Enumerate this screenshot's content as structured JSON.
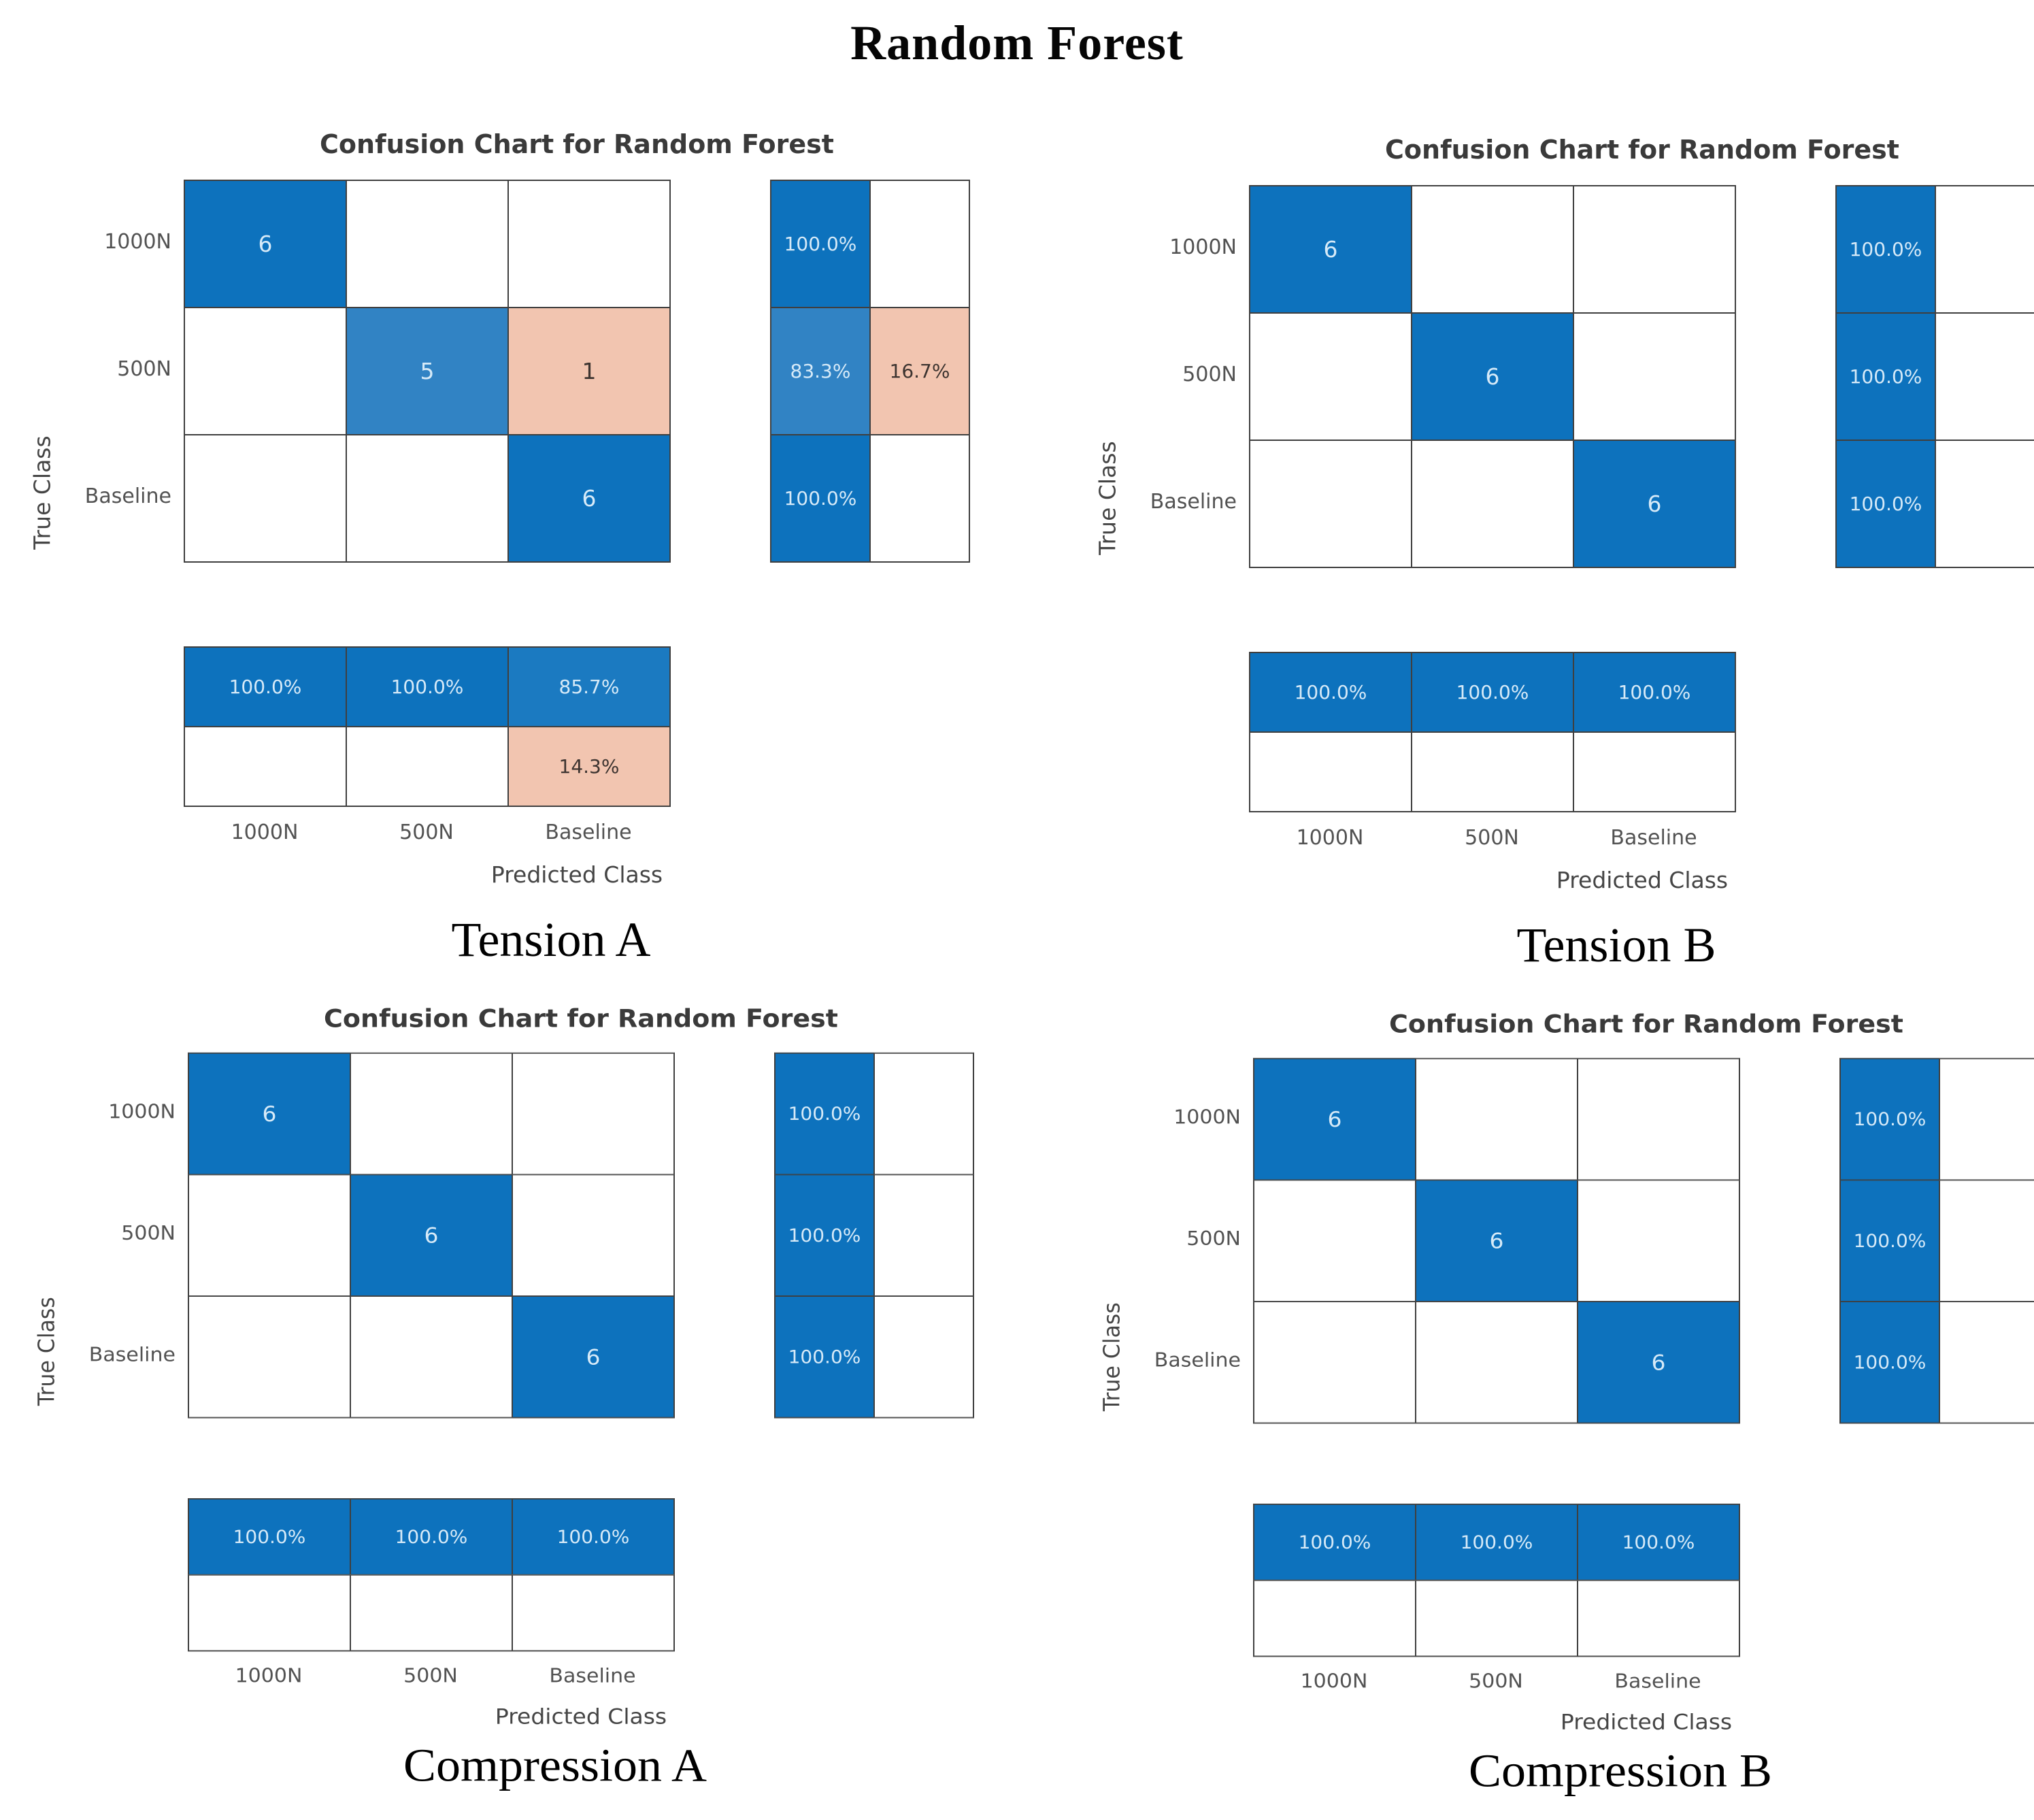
{
  "page_title": "Random Forest",
  "colors": {
    "blue": "#0d72bd",
    "blue_light": "#3183c4",
    "blue_mid": "#1b7ac1",
    "salmon": "#f2c5b0",
    "text_on_blue": "#d6eaf8",
    "text_on_salmon": "#3d3430",
    "grid_border": "#3f3f3f"
  },
  "chart_data": [
    {
      "type": "heatmap",
      "title": "Confusion Chart for Random Forest",
      "caption": "Tension A",
      "xlabel": "Predicted Class",
      "ylabel": "True Class",
      "classes": [
        "1000N",
        "500N",
        "Baseline"
      ],
      "counts": [
        [
          6,
          0,
          0
        ],
        [
          0,
          5,
          1
        ],
        [
          0,
          0,
          6
        ]
      ],
      "row_normalized_pct": [
        [
          100.0,
          null
        ],
        [
          83.3,
          16.7
        ],
        [
          100.0,
          null
        ]
      ],
      "col_normalized_pct": [
        [
          100.0,
          100.0,
          85.7
        ],
        [
          null,
          null,
          14.3
        ]
      ],
      "cells": {
        "matrix": [
          [
            "6",
            "",
            ""
          ],
          [
            "",
            "5",
            "1"
          ],
          [
            "",
            "",
            "6"
          ]
        ],
        "matrix_colors": [
          [
            "blue",
            "",
            ""
          ],
          [
            "",
            "blue_light",
            "salmon"
          ],
          [
            "",
            "",
            "blue"
          ]
        ],
        "row_summary": [
          [
            "100.0%",
            ""
          ],
          [
            "83.3%",
            "16.7%"
          ],
          [
            "100.0%",
            ""
          ]
        ],
        "row_summary_colors": [
          [
            "blue",
            ""
          ],
          [
            "blue_light",
            "salmon"
          ],
          [
            "blue",
            ""
          ]
        ],
        "col_summary": [
          [
            "100.0%",
            "100.0%",
            "85.7%"
          ],
          [
            "",
            "",
            "14.3%"
          ]
        ],
        "col_summary_colors": [
          [
            "blue",
            "blue",
            "blue_mid"
          ],
          [
            "",
            "",
            "salmon"
          ]
        ]
      }
    },
    {
      "type": "heatmap",
      "title": "Confusion Chart for Random Forest",
      "caption": "Tension B",
      "xlabel": "Predicted Class",
      "ylabel": "True Class",
      "classes": [
        "1000N",
        "500N",
        "Baseline"
      ],
      "counts": [
        [
          6,
          0,
          0
        ],
        [
          0,
          6,
          0
        ],
        [
          0,
          0,
          6
        ]
      ],
      "row_normalized_pct": [
        [
          100.0,
          null
        ],
        [
          100.0,
          null
        ],
        [
          100.0,
          null
        ]
      ],
      "col_normalized_pct": [
        [
          100.0,
          100.0,
          100.0
        ],
        [
          null,
          null,
          null
        ]
      ],
      "cells": {
        "matrix": [
          [
            "6",
            "",
            ""
          ],
          [
            "",
            "6",
            ""
          ],
          [
            "",
            "",
            "6"
          ]
        ],
        "matrix_colors": [
          [
            "blue",
            "",
            ""
          ],
          [
            "",
            "blue",
            ""
          ],
          [
            "",
            "",
            "blue"
          ]
        ],
        "row_summary": [
          [
            "100.0%",
            ""
          ],
          [
            "100.0%",
            ""
          ],
          [
            "100.0%",
            ""
          ]
        ],
        "row_summary_colors": [
          [
            "blue",
            ""
          ],
          [
            "blue",
            ""
          ],
          [
            "blue",
            ""
          ]
        ],
        "col_summary": [
          [
            "100.0%",
            "100.0%",
            "100.0%"
          ],
          [
            "",
            "",
            ""
          ]
        ],
        "col_summary_colors": [
          [
            "blue",
            "blue",
            "blue"
          ],
          [
            "",
            "",
            ""
          ]
        ]
      }
    },
    {
      "type": "heatmap",
      "title": "Confusion Chart for Random Forest",
      "caption": "Compression A",
      "xlabel": "Predicted Class",
      "ylabel": "True Class",
      "classes": [
        "1000N",
        "500N",
        "Baseline"
      ],
      "counts": [
        [
          6,
          0,
          0
        ],
        [
          0,
          6,
          0
        ],
        [
          0,
          0,
          6
        ]
      ],
      "row_normalized_pct": [
        [
          100.0,
          null
        ],
        [
          100.0,
          null
        ],
        [
          100.0,
          null
        ]
      ],
      "col_normalized_pct": [
        [
          100.0,
          100.0,
          100.0
        ],
        [
          null,
          null,
          null
        ]
      ],
      "cells": {
        "matrix": [
          [
            "6",
            "",
            ""
          ],
          [
            "",
            "6",
            ""
          ],
          [
            "",
            "",
            "6"
          ]
        ],
        "matrix_colors": [
          [
            "blue",
            "",
            ""
          ],
          [
            "",
            "blue",
            ""
          ],
          [
            "",
            "",
            "blue"
          ]
        ],
        "row_summary": [
          [
            "100.0%",
            ""
          ],
          [
            "100.0%",
            ""
          ],
          [
            "100.0%",
            ""
          ]
        ],
        "row_summary_colors": [
          [
            "blue",
            ""
          ],
          [
            "blue",
            ""
          ],
          [
            "blue",
            ""
          ]
        ],
        "col_summary": [
          [
            "100.0%",
            "100.0%",
            "100.0%"
          ],
          [
            "",
            "",
            ""
          ]
        ],
        "col_summary_colors": [
          [
            "blue",
            "blue",
            "blue"
          ],
          [
            "",
            "",
            ""
          ]
        ]
      }
    },
    {
      "type": "heatmap",
      "title": "Confusion Chart for Random Forest",
      "caption": "Compression B",
      "xlabel": "Predicted Class",
      "ylabel": "True Class",
      "classes": [
        "1000N",
        "500N",
        "Baseline"
      ],
      "counts": [
        [
          6,
          0,
          0
        ],
        [
          0,
          6,
          0
        ],
        [
          0,
          0,
          6
        ]
      ],
      "row_normalized_pct": [
        [
          100.0,
          null
        ],
        [
          100.0,
          null
        ],
        [
          100.0,
          null
        ]
      ],
      "col_normalized_pct": [
        [
          100.0,
          100.0,
          100.0
        ],
        [
          null,
          null,
          null
        ]
      ],
      "cells": {
        "matrix": [
          [
            "6",
            "",
            ""
          ],
          [
            "",
            "6",
            ""
          ],
          [
            "",
            "",
            "6"
          ]
        ],
        "matrix_colors": [
          [
            "blue",
            "",
            ""
          ],
          [
            "",
            "blue",
            ""
          ],
          [
            "",
            "",
            "blue"
          ]
        ],
        "row_summary": [
          [
            "100.0%",
            ""
          ],
          [
            "100.0%",
            ""
          ],
          [
            "100.0%",
            ""
          ]
        ],
        "row_summary_colors": [
          [
            "blue",
            ""
          ],
          [
            "blue",
            ""
          ],
          [
            "blue",
            ""
          ]
        ],
        "col_summary": [
          [
            "100.0%",
            "100.0%",
            "100.0%"
          ],
          [
            "",
            "",
            ""
          ]
        ],
        "col_summary_colors": [
          [
            "blue",
            "blue",
            "blue"
          ],
          [
            "",
            "",
            ""
          ]
        ]
      }
    }
  ]
}
